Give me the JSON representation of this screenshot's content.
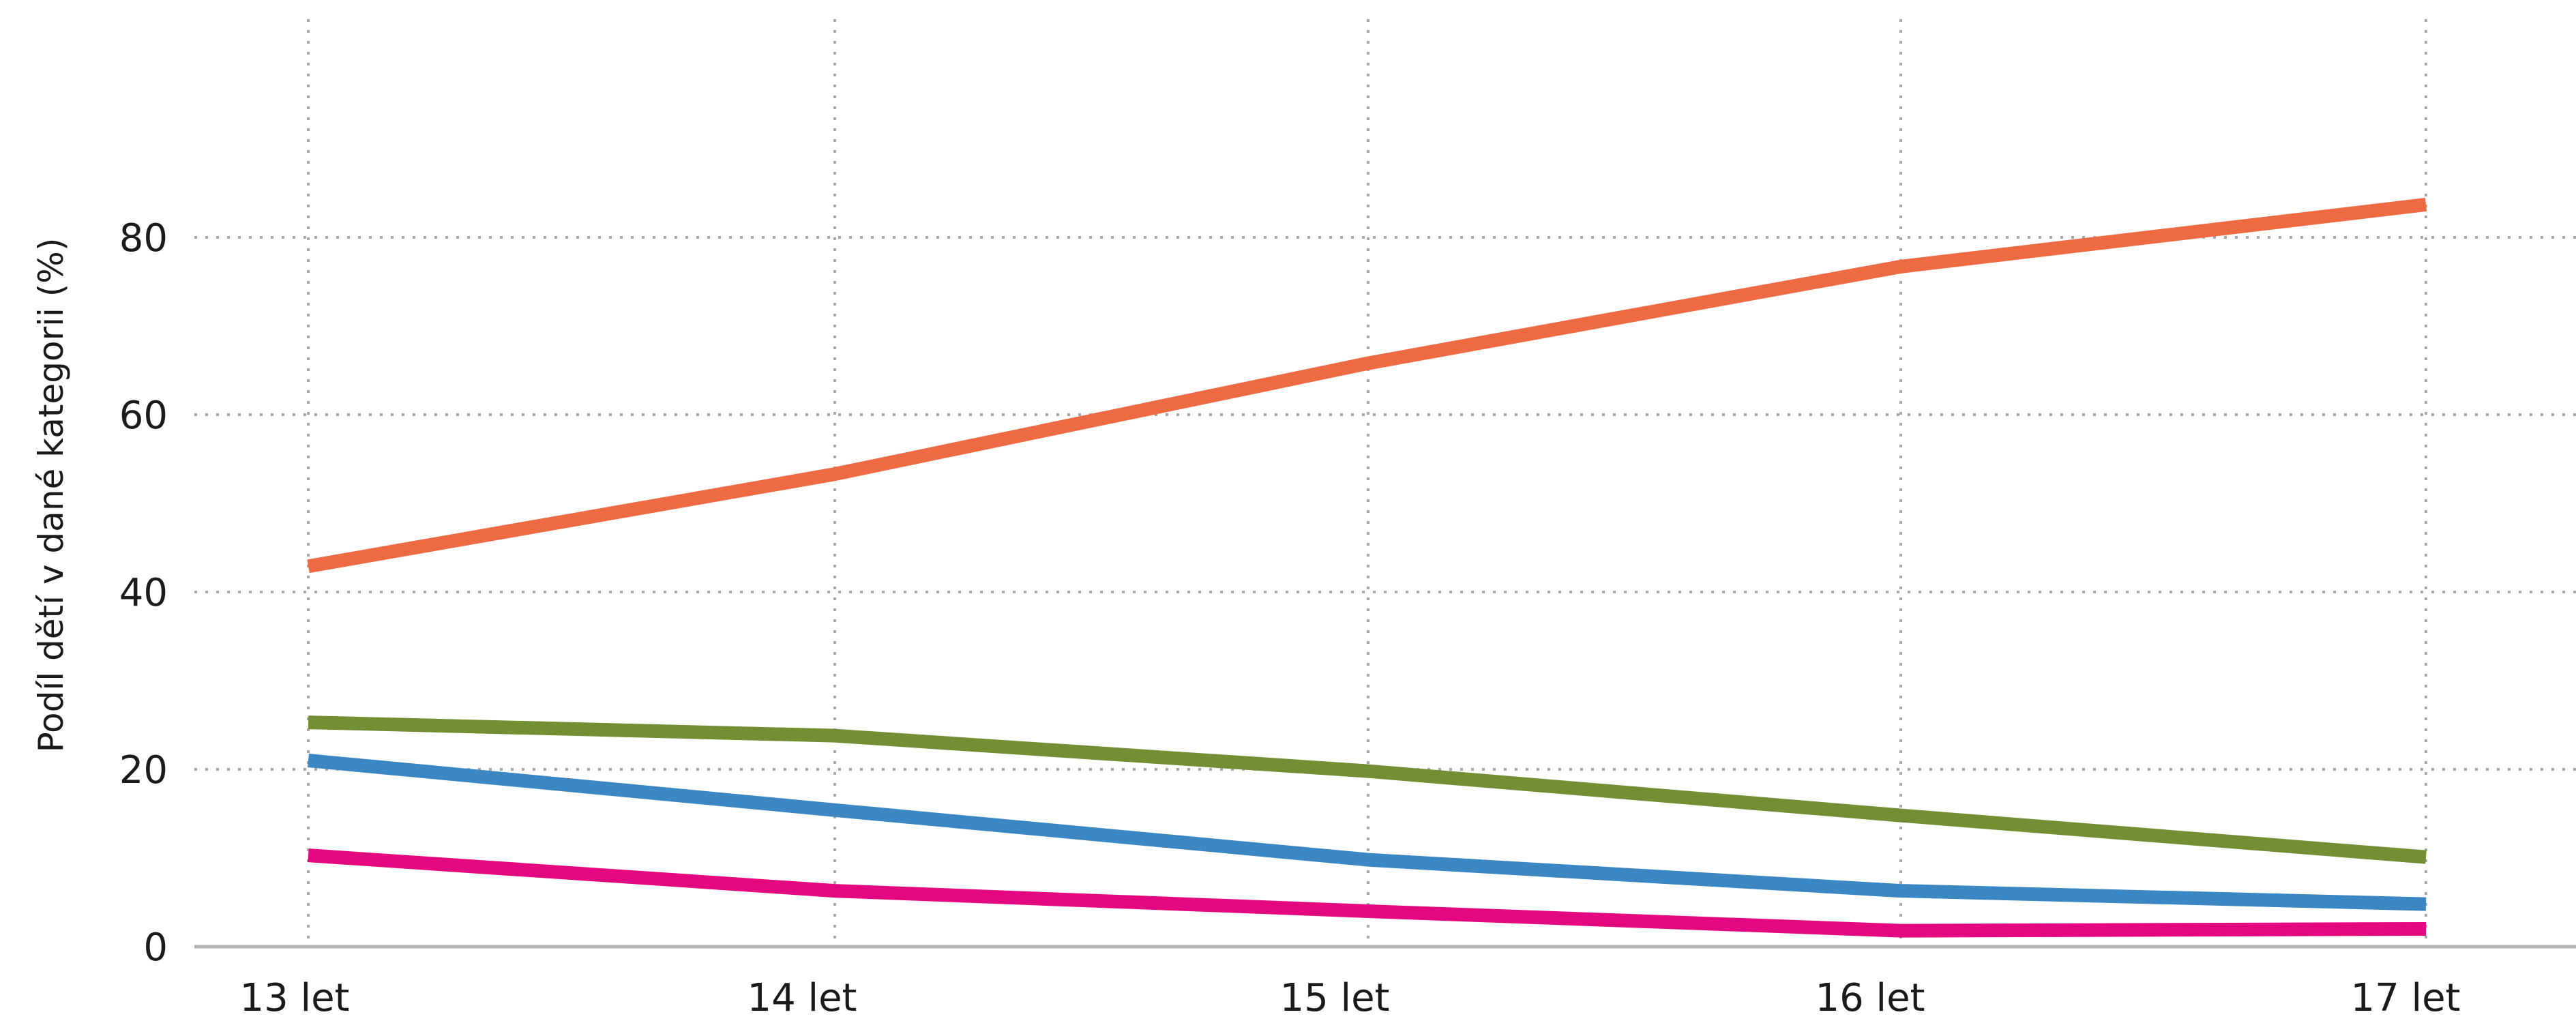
{
  "chart_data": {
    "type": "line",
    "title": "",
    "xlabel": "",
    "ylabel": "Podíl dětí v dané kategorii (%)",
    "categories": [
      "13 let",
      "14 let",
      "15 let",
      "16 let",
      "17 let"
    ],
    "ylim": [
      0,
      100
    ],
    "yticks": [
      0,
      20,
      40,
      60,
      80
    ],
    "grid": true,
    "legend": "none",
    "series": [
      {
        "color": "#EE6A43",
        "values": [
          42.9,
          53.3,
          65.8,
          76.7,
          83.7
        ]
      },
      {
        "color": "#738F33",
        "values": [
          25.3,
          23.8,
          19.8,
          14.8,
          10.1
        ]
      },
      {
        "color": "#3A87C4",
        "values": [
          21.0,
          15.4,
          9.8,
          6.3,
          4.8
        ]
      },
      {
        "color": "#E3087F",
        "values": [
          10.3,
          6.3,
          4.0,
          1.8,
          2.0
        ]
      }
    ]
  }
}
